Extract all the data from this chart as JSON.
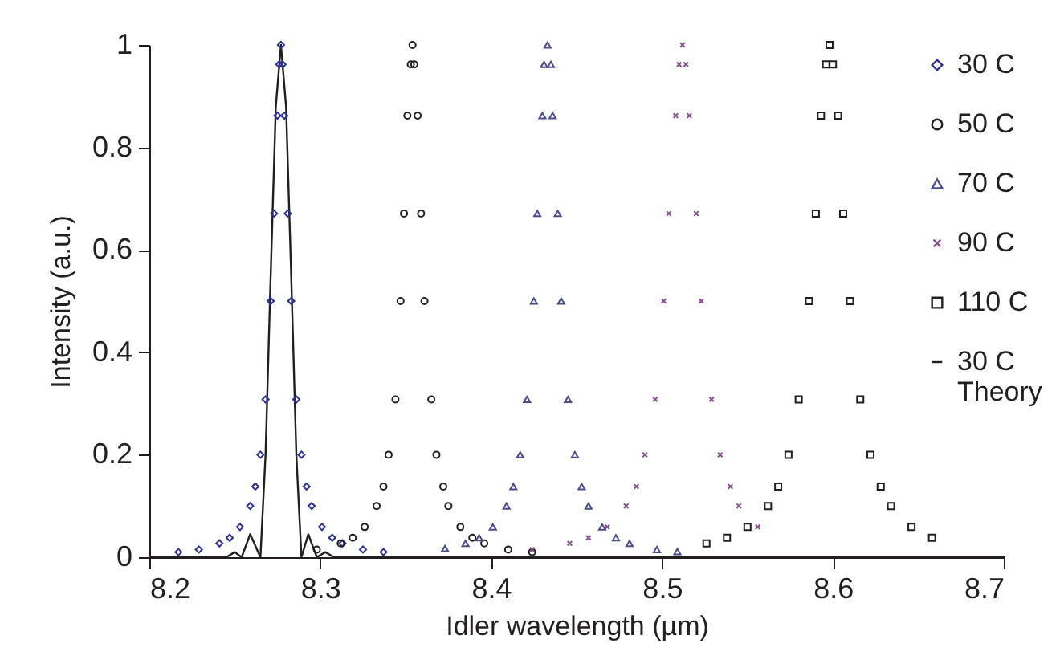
{
  "chart_data": {
    "type": "scatter",
    "xlabel": "Idler wavelength (µm)",
    "ylabel": "Intensity (a.u.)",
    "xlim": [
      8.2,
      8.7
    ],
    "xticks": [
      8.2,
      8.3,
      8.4,
      8.5,
      8.6,
      8.7
    ],
    "ylim": [
      0,
      1
    ],
    "yticks": [
      0,
      0.2,
      0.4,
      0.6,
      0.8,
      1
    ],
    "grid": false,
    "legend": "right",
    "series": [
      {
        "name": "30 C",
        "marker": "diamond",
        "color": "#2e3192",
        "x": [
          8.217,
          8.229,
          8.241,
          8.247,
          8.253,
          8.259,
          8.262,
          8.265,
          8.268,
          8.271,
          8.273,
          8.275,
          8.276,
          8.277,
          8.278,
          8.279,
          8.281,
          8.283,
          8.286,
          8.289,
          8.292,
          8.295,
          8.301,
          8.307,
          8.313,
          8.325,
          8.337
        ],
        "values": [
          0.01,
          0.015,
          0.027,
          0.038,
          0.059,
          0.1,
          0.138,
          0.2,
          0.308,
          0.5,
          0.671,
          0.862,
          0.962,
          1,
          0.962,
          0.862,
          0.671,
          0.5,
          0.308,
          0.2,
          0.138,
          0.1,
          0.059,
          0.038,
          0.027,
          0.015,
          0.01
        ]
      },
      {
        "name": "50 C",
        "marker": "circle",
        "color": "#231f20",
        "x": [
          8.298,
          8.312,
          8.319,
          8.326,
          8.333,
          8.337,
          8.34,
          8.344,
          8.347,
          8.349,
          8.351,
          8.353,
          8.354,
          8.355,
          8.357,
          8.359,
          8.361,
          8.365,
          8.368,
          8.372,
          8.375,
          8.382,
          8.389,
          8.396,
          8.41,
          8.424
        ],
        "values": [
          0.015,
          0.027,
          0.038,
          0.059,
          0.1,
          0.138,
          0.2,
          0.308,
          0.5,
          0.671,
          0.862,
          0.962,
          1,
          0.962,
          0.862,
          0.671,
          0.5,
          0.308,
          0.2,
          0.138,
          0.1,
          0.059,
          0.038,
          0.027,
          0.015,
          0.01
        ]
      },
      {
        "name": "70 C",
        "marker": "triangle",
        "color": "#4b4b8f",
        "x": [
          8.373,
          8.385,
          8.393,
          8.401,
          8.409,
          8.413,
          8.417,
          8.421,
          8.425,
          8.427,
          8.43,
          8.431,
          8.433,
          8.435,
          8.436,
          8.439,
          8.441,
          8.445,
          8.449,
          8.453,
          8.457,
          8.465,
          8.473,
          8.481,
          8.497,
          8.509
        ],
        "values": [
          0.017,
          0.027,
          0.038,
          0.059,
          0.1,
          0.138,
          0.2,
          0.308,
          0.5,
          0.671,
          0.862,
          0.962,
          1,
          0.962,
          0.862,
          0.671,
          0.5,
          0.308,
          0.2,
          0.138,
          0.1,
          0.059,
          0.038,
          0.027,
          0.015,
          0.011
        ]
      },
      {
        "name": "90 C",
        "marker": "cross",
        "color": "#87508f",
        "x": [
          8.424,
          8.446,
          8.457,
          8.468,
          8.479,
          8.485,
          8.49,
          8.496,
          8.501,
          8.504,
          8.508,
          8.51,
          8.512,
          8.514,
          8.516,
          8.52,
          8.523,
          8.529,
          8.534,
          8.54,
          8.545,
          8.556
        ],
        "values": [
          0.015,
          0.027,
          0.038,
          0.059,
          0.1,
          0.138,
          0.2,
          0.308,
          0.5,
          0.671,
          0.862,
          0.962,
          1,
          0.962,
          0.862,
          0.671,
          0.5,
          0.308,
          0.2,
          0.138,
          0.1,
          0.059
        ]
      },
      {
        "name": "110 C",
        "marker": "square",
        "color": "#231f20",
        "x": [
          8.526,
          8.538,
          8.55,
          8.562,
          8.568,
          8.574,
          8.58,
          8.586,
          8.59,
          8.593,
          8.596,
          8.598,
          8.6,
          8.603,
          8.606,
          8.61,
          8.616,
          8.622,
          8.628,
          8.634,
          8.646,
          8.658
        ],
        "values": [
          0.027,
          0.038,
          0.059,
          0.1,
          0.138,
          0.2,
          0.308,
          0.5,
          0.671,
          0.862,
          0.962,
          1,
          0.962,
          0.862,
          0.671,
          0.5,
          0.308,
          0.2,
          0.138,
          0.1,
          0.059,
          0.038
        ]
      },
      {
        "name": "30 C Theory",
        "type": "line",
        "marker": "none",
        "color": "#231f20",
        "x": [
          8.2,
          8.245,
          8.25,
          8.254,
          8.259,
          8.265,
          8.268,
          8.271,
          8.274,
          8.277,
          8.28,
          8.283,
          8.286,
          8.289,
          8.293,
          8.298,
          8.303,
          8.308,
          8.7
        ],
        "values": [
          0,
          0,
          0.01,
          0,
          0.045,
          0,
          0.2,
          0.55,
          0.88,
          1,
          0.88,
          0.55,
          0.2,
          0,
          0.045,
          0,
          0.01,
          0,
          0
        ]
      }
    ]
  }
}
